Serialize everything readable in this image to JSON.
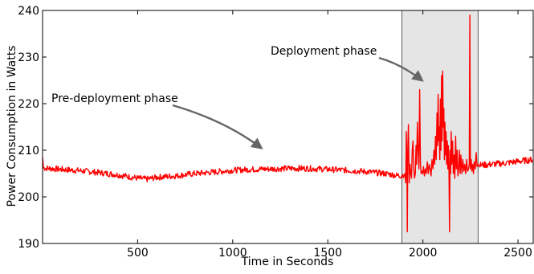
{
  "chart_data": {
    "type": "line",
    "title": "",
    "xlabel": "Time in Seconds",
    "ylabel": "Power Consumption in Watts",
    "xlim": [
      0,
      2580
    ],
    "ylim": [
      190,
      240
    ],
    "xticks": [
      500,
      1000,
      1500,
      2000,
      2500
    ],
    "yticks": [
      190,
      200,
      210,
      220,
      230,
      240
    ],
    "xtick_labels": [
      "500",
      "1000",
      "1500",
      "2000",
      "2500"
    ],
    "ytick_labels": [
      "190",
      "200",
      "210",
      "220",
      "230",
      "240"
    ],
    "grid": false,
    "line_color": "#ff0000",
    "highlight_region": {
      "x_start": 1890,
      "x_end": 2290,
      "color": "#e5e5e5"
    },
    "baseline": [
      [
        0,
        208.5
      ],
      [
        5,
        206.2
      ],
      [
        100,
        205.9
      ],
      [
        200,
        205.6
      ],
      [
        300,
        205.2
      ],
      [
        400,
        204.7
      ],
      [
        500,
        204.0
      ],
      [
        550,
        203.8
      ],
      [
        600,
        204.2
      ],
      [
        700,
        204.5
      ],
      [
        800,
        205.0
      ],
      [
        900,
        205.3
      ],
      [
        1000,
        205.7
      ],
      [
        1100,
        205.9
      ],
      [
        1200,
        206.0
      ],
      [
        1300,
        206.1
      ],
      [
        1400,
        206.1
      ],
      [
        1500,
        205.9
      ],
      [
        1600,
        205.7
      ],
      [
        1700,
        205.4
      ],
      [
        1800,
        205.0
      ],
      [
        1880,
        204.5
      ],
      [
        1900,
        204.8
      ]
    ],
    "deployment_points": [
      [
        1905,
        205.0
      ],
      [
        1910,
        203.0
      ],
      [
        1913,
        214.0
      ],
      [
        1916,
        206.0
      ],
      [
        1918,
        192.5
      ],
      [
        1921,
        211.0
      ],
      [
        1924,
        215.5
      ],
      [
        1928,
        203.0
      ],
      [
        1932,
        207.0
      ],
      [
        1936,
        205.0
      ],
      [
        1940,
        204.0
      ],
      [
        1944,
        210.0
      ],
      [
        1948,
        212.0
      ],
      [
        1952,
        206.0
      ],
      [
        1956,
        204.0
      ],
      [
        1960,
        205.0
      ],
      [
        1964,
        211.0
      ],
      [
        1967,
        207.0
      ],
      [
        1971,
        216.0
      ],
      [
        1975,
        210.0
      ],
      [
        1979,
        206.0
      ],
      [
        1983,
        223.0
      ],
      [
        1987,
        207.0
      ],
      [
        1991,
        205.0
      ],
      [
        1995,
        205.5
      ],
      [
        1999,
        205.0
      ],
      [
        2003,
        206.5
      ],
      [
        2008,
        204.5
      ],
      [
        2013,
        206.0
      ],
      [
        2018,
        205.0
      ],
      [
        2023,
        207.5
      ],
      [
        2028,
        205.0
      ],
      [
        2033,
        207.0
      ],
      [
        2038,
        206.0
      ],
      [
        2043,
        204.5
      ],
      [
        2048,
        208.0
      ],
      [
        2053,
        206.0
      ],
      [
        2058,
        210.0
      ],
      [
        2062,
        207.0
      ],
      [
        2066,
        213.0
      ],
      [
        2070,
        208.0
      ],
      [
        2074,
        218.0
      ],
      [
        2077,
        211.0
      ],
      [
        2080,
        222.0
      ],
      [
        2083,
        212.0
      ],
      [
        2086,
        215.0
      ],
      [
        2089,
        208.0
      ],
      [
        2092,
        221.0
      ],
      [
        2095,
        210.0
      ],
      [
        2098,
        226.0
      ],
      [
        2101,
        212.0
      ],
      [
        2104,
        227.0
      ],
      [
        2107,
        215.0
      ],
      [
        2110,
        219.0
      ],
      [
        2113,
        208.0
      ],
      [
        2116,
        216.0
      ],
      [
        2119,
        209.0
      ],
      [
        2122,
        214.0
      ],
      [
        2125,
        207.0
      ],
      [
        2128,
        212.0
      ],
      [
        2131,
        206.0
      ],
      [
        2134,
        211.0
      ],
      [
        2137,
        206.0
      ],
      [
        2140,
        192.5
      ],
      [
        2143,
        210.0
      ],
      [
        2146,
        205.0
      ],
      [
        2149,
        214.0
      ],
      [
        2152,
        207.0
      ],
      [
        2156,
        212.0
      ],
      [
        2160,
        205.0
      ],
      [
        2164,
        209.0
      ],
      [
        2168,
        204.0
      ],
      [
        2172,
        213.0
      ],
      [
        2176,
        206.0
      ],
      [
        2180,
        210.0
      ],
      [
        2184,
        204.5
      ],
      [
        2188,
        206.0
      ],
      [
        2192,
        210.0
      ],
      [
        2196,
        205.0
      ],
      [
        2200,
        209.0
      ],
      [
        2205,
        205.0
      ],
      [
        2210,
        208.0
      ],
      [
        2215,
        205.5
      ],
      [
        2220,
        207.0
      ],
      [
        2225,
        205.0
      ],
      [
        2230,
        208.0
      ],
      [
        2235,
        205.5
      ],
      [
        2240,
        206.0
      ],
      [
        2244,
        207.0
      ],
      [
        2247,
        239.0
      ],
      [
        2250,
        206.0
      ],
      [
        2254,
        208.0
      ],
      [
        2258,
        205.5
      ],
      [
        2262,
        207.0
      ],
      [
        2266,
        205.0
      ],
      [
        2270,
        207.5
      ],
      [
        2275,
        206.0
      ],
      [
        2280,
        209.5
      ],
      [
        2285,
        206.5
      ],
      [
        2290,
        207.0
      ]
    ],
    "post_points": [
      [
        2300,
        206.8
      ],
      [
        2400,
        207.1
      ],
      [
        2500,
        207.6
      ],
      [
        2580,
        208.0
      ]
    ],
    "annotations": [
      {
        "text": "Pre-deployment phase",
        "arrow_to": [
          1150,
          210.5
        ]
      },
      {
        "text": "Deployment phase",
        "arrow_to": [
          1995,
          225.0
        ]
      }
    ]
  }
}
